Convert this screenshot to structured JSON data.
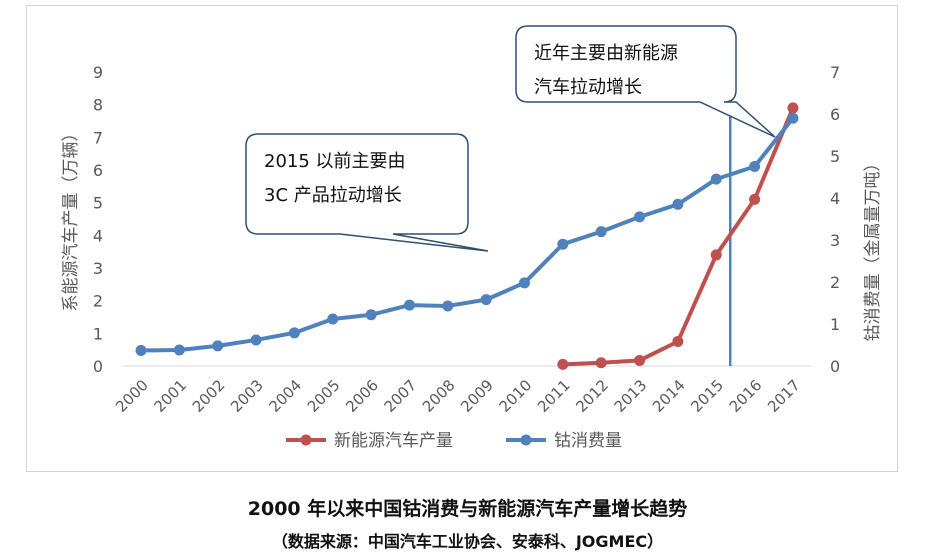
{
  "chart_data": {
    "type": "line",
    "categories": [
      "2000",
      "2001",
      "2002",
      "2003",
      "2004",
      "2005",
      "2006",
      "2007",
      "2008",
      "2009",
      "2010",
      "2011",
      "2012",
      "2013",
      "2014",
      "2015",
      "2016",
      "2017"
    ],
    "series": [
      {
        "name": "新能源汽车产量",
        "axis": "left",
        "color": "#c0504d",
        "values": [
          null,
          null,
          null,
          null,
          null,
          null,
          null,
          null,
          null,
          null,
          null,
          0.05,
          0.1,
          0.17,
          0.75,
          3.4,
          5.1,
          7.9
        ]
      },
      {
        "name": "钴消费量",
        "axis": "right",
        "color": "#4f81bd",
        "values": [
          0.37,
          0.38,
          0.48,
          0.62,
          0.79,
          1.12,
          1.22,
          1.45,
          1.43,
          1.58,
          1.98,
          2.9,
          3.2,
          3.55,
          3.85,
          4.45,
          4.75,
          5.9
        ]
      }
    ],
    "ylabel_left": "系能源汽车产量（万辆）",
    "ylabel_right": "钴消费量（金属量万吨）",
    "ylim_left": [
      0,
      9
    ],
    "ylim_right": [
      0,
      7
    ],
    "yticks_left": [
      "0",
      "1",
      "2",
      "3",
      "4",
      "5",
      "6",
      "7",
      "8",
      "9"
    ],
    "yticks_right": [
      "0",
      "1",
      "2",
      "3",
      "4",
      "5",
      "6",
      "7"
    ],
    "grid": false,
    "legend_position": "bottom",
    "marker_year": "2015",
    "annotations": [
      {
        "lines": [
          "2015 以前主要由",
          "3C 产品拉动增长"
        ]
      },
      {
        "lines": [
          "近年主要由新能源",
          "汽车拉动增长"
        ]
      }
    ]
  },
  "caption": {
    "title": "2000 年以来中国钴消费与新能源汽车产量增长趋势",
    "source": "（数据来源：中国汽车工业协会、安泰科、JOGMEC）"
  }
}
